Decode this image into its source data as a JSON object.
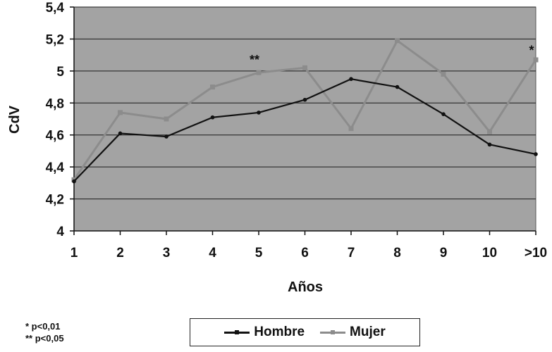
{
  "chart_data": {
    "type": "line",
    "title": "",
    "xlabel": "Años",
    "ylabel": "CdV",
    "categories": [
      "1",
      "2",
      "3",
      "4",
      "5",
      "6",
      "7",
      "8",
      "9",
      "10",
      ">10"
    ],
    "ylim": [
      4,
      5.4
    ],
    "yticks": [
      "4",
      "4,2",
      "4,4",
      "4,6",
      "4,8",
      "5",
      "5,2",
      "5,4"
    ],
    "grid": true,
    "legend": "bottom",
    "series": [
      {
        "name": "Hombre",
        "color": "#111111",
        "values": [
          4.31,
          4.61,
          4.59,
          4.71,
          4.74,
          4.82,
          4.95,
          4.9,
          4.73,
          4.54,
          4.48
        ]
      },
      {
        "name": "Mujer",
        "color": "#8c8c8c",
        "values": [
          4.32,
          4.74,
          4.7,
          4.9,
          4.99,
          5.02,
          4.64,
          5.19,
          4.98,
          4.62,
          5.07
        ]
      }
    ],
    "annotations": [
      {
        "text": "**",
        "x": "5",
        "y": 5.06
      },
      {
        "text": "*",
        "x": ">10",
        "y": 5.12
      }
    ],
    "plot_background": "#a3a3a3"
  },
  "footnotes": {
    "line1": "* p<0,01",
    "line2": "** p<0,05"
  },
  "legend": {
    "hombre": "Hombre",
    "mujer": "Mujer"
  }
}
